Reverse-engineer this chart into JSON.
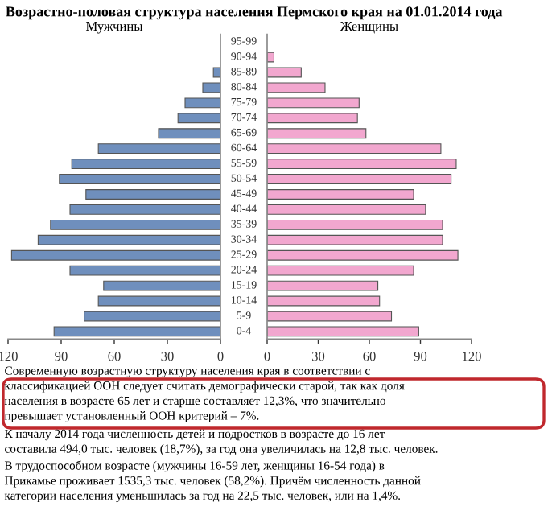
{
  "chart_data": [
    {
      "type": "bar",
      "orientation": "horizontal",
      "title": "Возрастно-половая структура населения Пермского края на 01.01.2014 года",
      "categories": [
        "95-99",
        "90-94",
        "85-89",
        "80-84",
        "75-79",
        "70-74",
        "65-69",
        "60-64",
        "55-59",
        "50-54",
        "45-49",
        "40-44",
        "35-39",
        "30-34",
        "25-29",
        "20-24",
        "15-19",
        "10-14",
        "5-9",
        "0-4"
      ],
      "series": [
        {
          "name": "Мужчины",
          "color": "#6f8fbd",
          "values": [
            null,
            null,
            4,
            10,
            20,
            24,
            35,
            69,
            84,
            91,
            76,
            85,
            96,
            103,
            118,
            85,
            66,
            69,
            77,
            94
          ]
        }
      ],
      "xlim": [
        120,
        0
      ],
      "xticks": [
        120,
        90,
        60,
        30,
        0
      ],
      "tick_labels": "xy",
      "annotations": [
        "Современную возрастную структуру населения края в соответствии с\nклассификацией ООН следует считать демографически старой, так как доля\nнаселения в возрасте 65 лет и старше составляет 12,3%, что значительно\nпревышает установленный ООН критерий – 7%.",
        "К началу 2014 года численность детей и подростков в возрасте до 16 лет\nсоставила 494,0 тыс. человек (18,7%), за год она увеличилась на 12,8 тыс. человек.",
        "В трудоспособном возрасте (мужчины 16-59 лет, женщины 16-54 года) в\nПрикамье проживает 1535,3 тыс. человек (58,2%). Причём численность данной\nкатегории населения уменьшилась за год на 22,5 тыс. человек, или на 1,4%."
      ]
    },
    {
      "type": "bar",
      "orientation": "horizontal",
      "series": [
        {
          "name": "Женщины",
          "color": "#f2a7cf",
          "values": [
            null,
            4,
            20,
            34,
            54,
            53,
            58,
            102,
            111,
            108,
            86,
            93,
            103,
            103,
            112,
            86,
            65,
            66,
            73,
            89
          ]
        }
      ],
      "xlim": [
        0,
        120
      ],
      "xticks": [
        0,
        30,
        60,
        90,
        120
      ],
      "tick_labels": "x"
    }
  ]
}
